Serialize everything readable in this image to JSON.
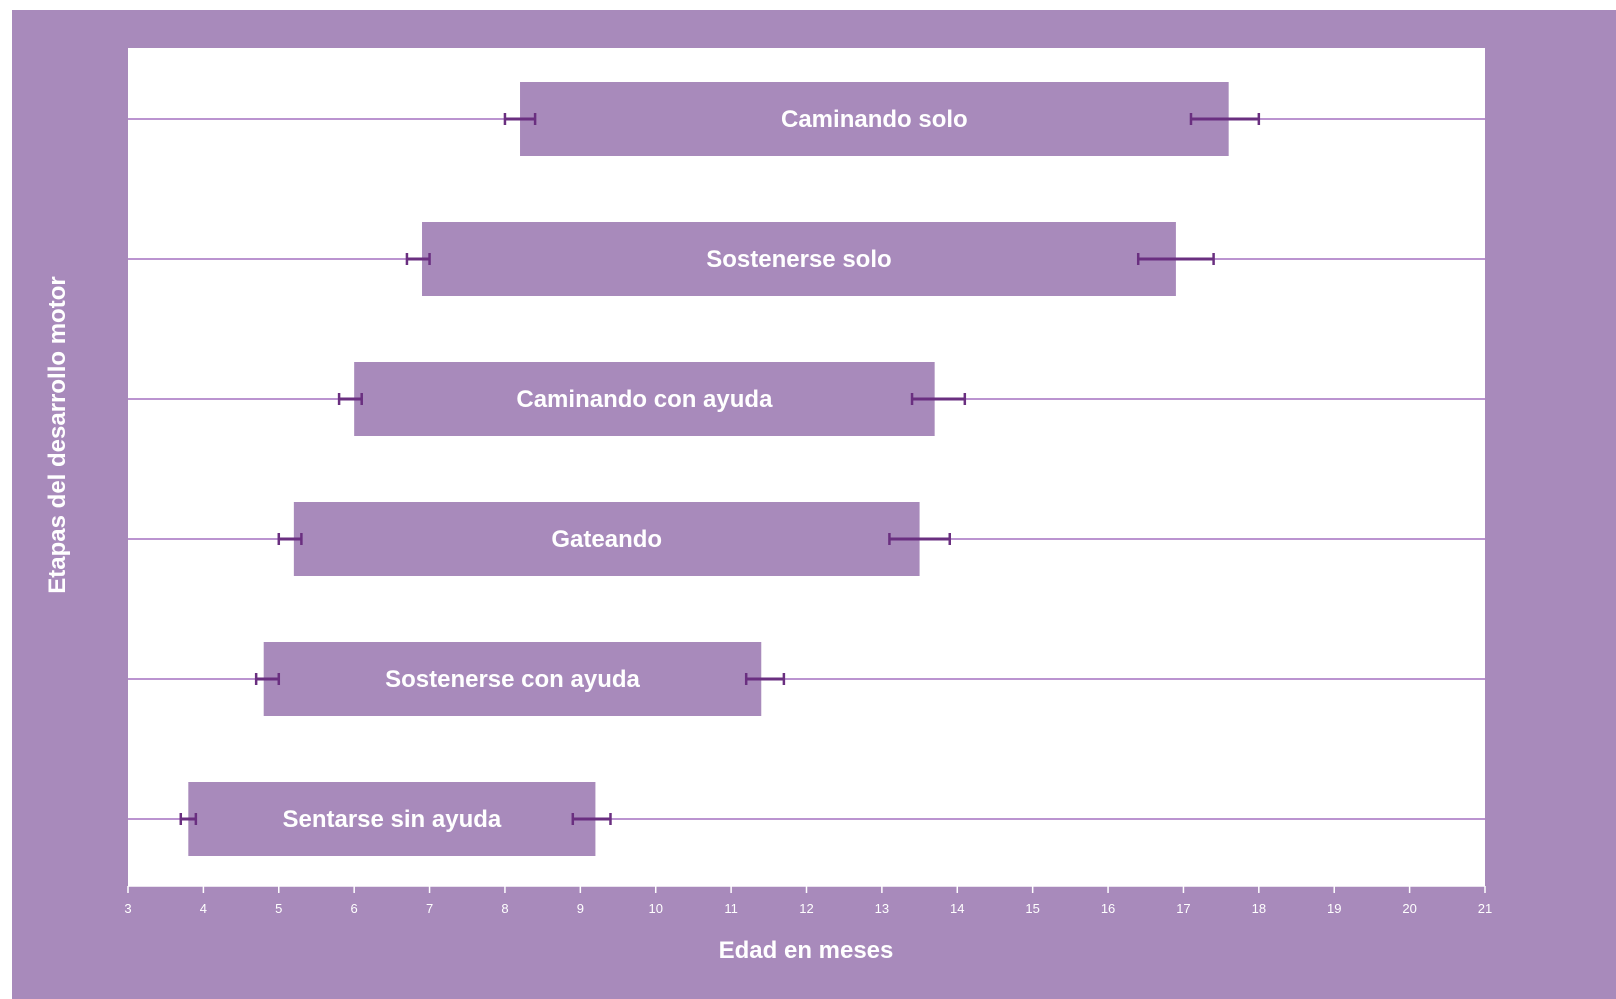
{
  "colors": {
    "frame": "#a88abb",
    "plot_background": "#ffffff",
    "bar": "#a88abb",
    "row_line": "#bb94d0",
    "error_bar": "#6a2f80",
    "text": "#ffffff"
  },
  "chart_data": {
    "type": "bar",
    "orientation": "horizontal",
    "subtype": "floating-range",
    "xlabel": "Edad en meses",
    "ylabel": "Etapas del desarrollo motor",
    "xlim": [
      3,
      21
    ],
    "x_ticks": [
      3,
      4,
      5,
      6,
      7,
      8,
      9,
      10,
      11,
      12,
      13,
      14,
      15,
      16,
      17,
      18,
      19,
      20,
      21
    ],
    "grid": false,
    "legend": "none",
    "categories": [
      "Caminando solo",
      "Sostenerse solo",
      "Caminando con ayuda",
      "Gateando",
      "Sostenerse con ayuda",
      "Sentarse sin ayuda"
    ],
    "ranges": [
      {
        "start": 8.2,
        "end": 17.6,
        "start_err": [
          8.0,
          8.4
        ],
        "end_err": [
          17.1,
          18.0
        ]
      },
      {
        "start": 6.9,
        "end": 16.9,
        "start_err": [
          6.7,
          7.0
        ],
        "end_err": [
          16.4,
          17.4
        ]
      },
      {
        "start": 6.0,
        "end": 13.7,
        "start_err": [
          5.8,
          6.1
        ],
        "end_err": [
          13.4,
          14.1
        ]
      },
      {
        "start": 5.2,
        "end": 13.5,
        "start_err": [
          5.0,
          5.3
        ],
        "end_err": [
          13.1,
          13.9
        ]
      },
      {
        "start": 4.8,
        "end": 11.4,
        "start_err": [
          4.7,
          5.0
        ],
        "end_err": [
          11.2,
          11.7
        ]
      },
      {
        "start": 3.8,
        "end": 9.2,
        "start_err": [
          3.7,
          3.9
        ],
        "end_err": [
          8.9,
          9.4
        ]
      }
    ]
  }
}
